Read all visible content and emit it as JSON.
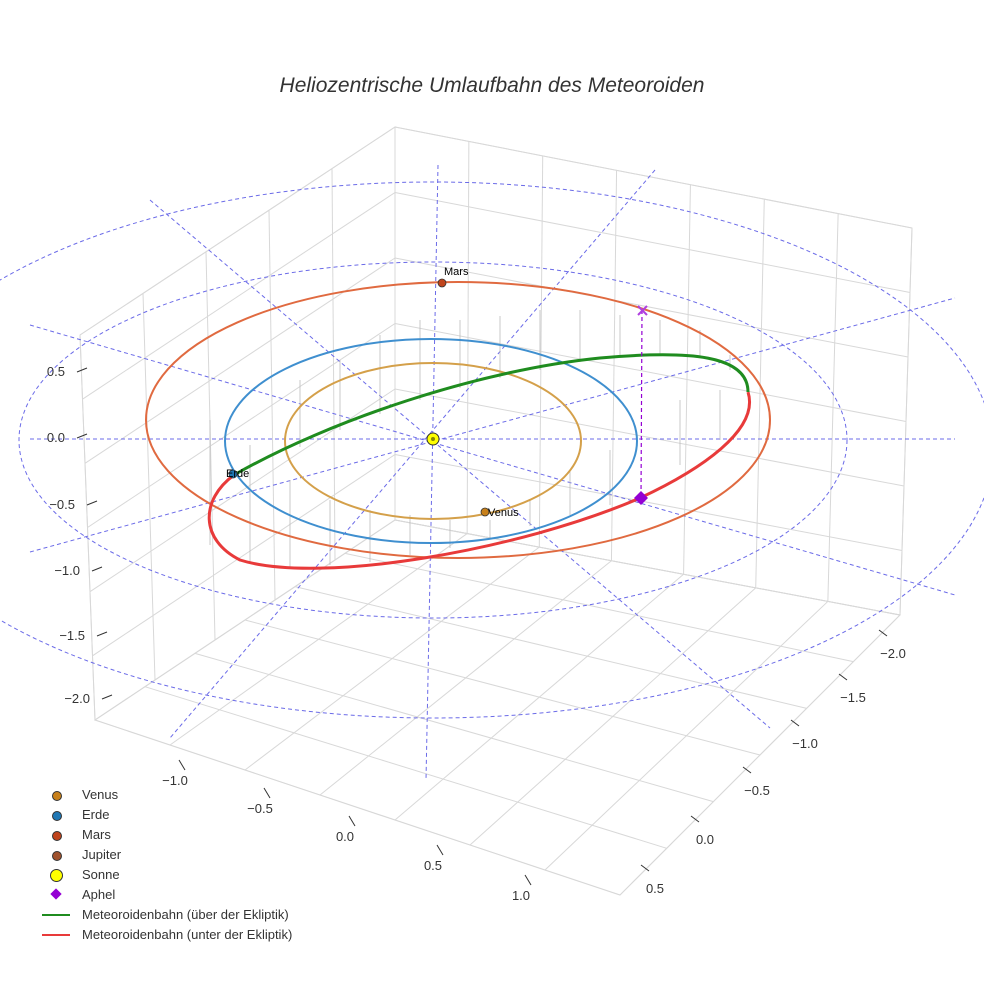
{
  "title": "Heliozentrische Umlaufbahn des Meteoroiden",
  "chart_data": {
    "type": "scatter3d",
    "title": "Heliozentrische Umlaufbahn des Meteoroiden",
    "axes": {
      "x_ticks": [
        "−1.0",
        "−0.5",
        "0.0",
        "0.5",
        "1.0"
      ],
      "y_ticks": [
        "−2.0",
        "−1.5",
        "−1.0",
        "−0.5",
        "0.0",
        "0.5"
      ],
      "z_ticks": [
        "0.5",
        "0.0",
        "−0.5",
        "−1.0",
        "−1.5",
        "−2.0"
      ]
    },
    "planets": [
      {
        "name": "Venus",
        "color": "#c8801a",
        "orbit_color": "#d4a04a"
      },
      {
        "name": "Erde",
        "color": "#1f77b4",
        "orbit_color": "#3f8fcf"
      },
      {
        "name": "Mars",
        "color": "#c0441c",
        "orbit_color": "#e06a40"
      }
    ],
    "sun": {
      "name": "Sonne",
      "color": "#ffff00"
    },
    "aphel_label": "Aphel",
    "meteoroid_orbit": {
      "above_label": "Meteoroidenbahn (über der Ekliptik)",
      "above_color": "#1f8c1f",
      "below_label": "Meteoroidenbahn (unter der Ekliptik)",
      "below_color": "#e83a3a"
    }
  },
  "planet_labels": {
    "venus": "Venus",
    "erde": "Erde",
    "mars": "Mars"
  },
  "legend": [
    {
      "label": "Venus",
      "symbol": "dot",
      "color": "#c8801a"
    },
    {
      "label": "Erde",
      "symbol": "dot",
      "color": "#1f77b4"
    },
    {
      "label": "Mars",
      "symbol": "dot",
      "color": "#c0441c"
    },
    {
      "label": "Jupiter",
      "symbol": "dot",
      "color": "#a0522d"
    },
    {
      "label": "Sonne",
      "symbol": "bigdot",
      "color": "#ffff00"
    },
    {
      "label": "Aphel",
      "symbol": "diamond",
      "color": "#9400d3"
    },
    {
      "label": "Meteoroidenbahn (über der Ekliptik)",
      "symbol": "line",
      "color": "#1f8c1f"
    },
    {
      "label": "Meteoroidenbahn (unter der Ekliptik)",
      "symbol": "line",
      "color": "#e83a3a"
    }
  ]
}
